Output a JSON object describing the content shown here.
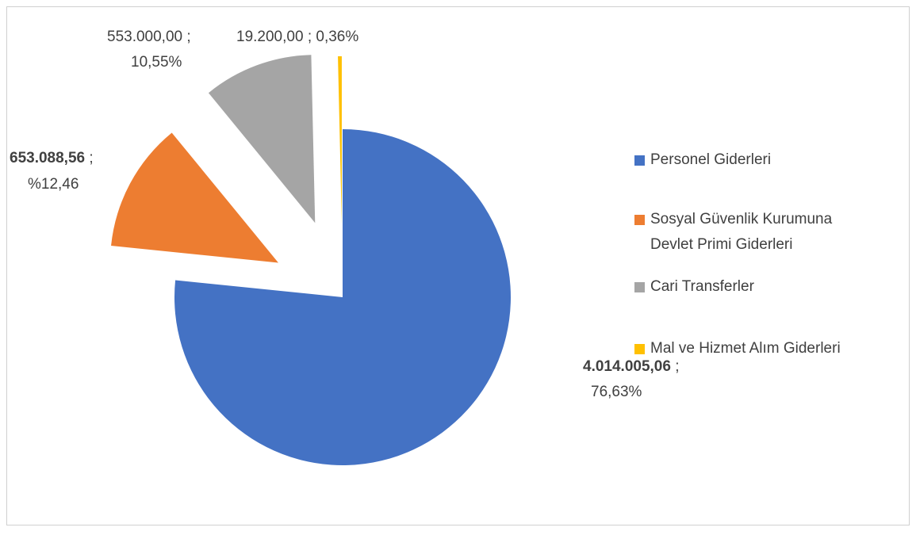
{
  "chart_data": {
    "type": "pie",
    "categories": [
      "Personel Giderleri",
      "Sosyal Güvenlik Kurumuna Devlet Primi Giderleri",
      "Cari Transferler",
      "Mal ve Hizmet Alım Giderleri"
    ],
    "values": [
      4014005.06,
      653088.56,
      553000.0,
      19200.0
    ],
    "value_labels": [
      "4.014.005,06",
      "653.088,56",
      "553.000,00",
      "19.200,00"
    ],
    "percents": [
      76.63,
      12.46,
      10.55,
      0.36
    ],
    "percent_labels": [
      "76,63%",
      "%12,46",
      "10,55%",
      "0,36%"
    ],
    "label_separator": ";",
    "colors": [
      "#4472c4",
      "#ed7d31",
      "#a5a5a5",
      "#ffc000"
    ],
    "legend": "right"
  }
}
